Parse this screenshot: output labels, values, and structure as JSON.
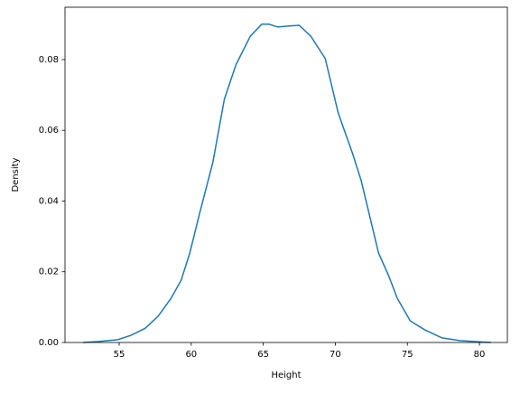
{
  "chart_data": {
    "type": "line",
    "x_label": "Height",
    "y_label": "Density",
    "series": [
      {
        "color": "#1f77b4",
        "x": [
          52.5,
          53.6,
          54.9,
          55.8,
          56.8,
          57.7,
          58.6,
          59.3,
          59.9,
          60.6,
          61.5,
          62.3,
          63.1,
          64.1,
          64.9,
          65.4,
          66.0,
          66.8,
          67.5,
          68.3,
          69.3,
          70.2,
          71.2,
          71.8,
          72.4,
          73.0,
          73.7,
          74.3,
          75.2,
          76.2,
          77.4,
          78.7,
          80.8
        ],
        "values": [
          0,
          0.0003,
          0.0008,
          0.002,
          0.004,
          0.0074,
          0.0125,
          0.0176,
          0.0253,
          0.0368,
          0.0509,
          0.0688,
          0.0785,
          0.0866,
          0.09,
          0.09,
          0.0892,
          0.0895,
          0.0897,
          0.0866,
          0.0803,
          0.0649,
          0.0534,
          0.0457,
          0.0355,
          0.0253,
          0.0189,
          0.0125,
          0.0061,
          0.0036,
          0.0013,
          0.0005,
          0
        ]
      }
    ],
    "xlim": [
      51.24,
      81.94
    ],
    "ylim": [
      0,
      0.0948
    ],
    "xticks": [
      55,
      60,
      65,
      70,
      75,
      80
    ],
    "yticks": [
      {
        "value": 0,
        "label": "0.00"
      },
      {
        "value": 0.02,
        "label": "0.02"
      },
      {
        "value": 0.04,
        "label": "0.04"
      },
      {
        "value": 0.06,
        "label": "0.06"
      },
      {
        "value": 0.08,
        "label": "0.08"
      }
    ]
  }
}
